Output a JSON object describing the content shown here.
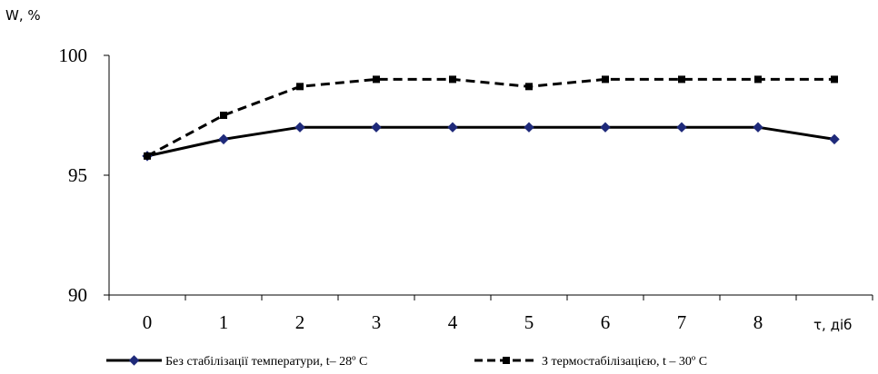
{
  "chart_data": {
    "type": "line",
    "ylabel": "W, %",
    "xlabel": "τ, діб",
    "categories": [
      "0",
      "1",
      "2",
      "3",
      "4",
      "5",
      "6",
      "7",
      "8",
      ""
    ],
    "ylim": [
      90,
      100
    ],
    "yticks": [
      "100",
      "95",
      "90"
    ],
    "grid": false,
    "legend_position": "bottom",
    "series": [
      {
        "name": "Без стабілізації температури, t– 28º C",
        "values": [
          95.8,
          96.5,
          97.0,
          97.0,
          97.0,
          97.0,
          97.0,
          97.0,
          97.0,
          96.5
        ],
        "style": "solid",
        "marker": "diamond",
        "color": "#000000",
        "marker_color": "#1f2a7a"
      },
      {
        "name": "З термостабілізацією, t – 30º C",
        "values": [
          95.8,
          97.5,
          98.7,
          99.0,
          99.0,
          98.7,
          99.0,
          99.0,
          99.0,
          99.0
        ],
        "style": "dashed",
        "marker": "square",
        "color": "#000000",
        "marker_color": "#000000"
      }
    ]
  }
}
